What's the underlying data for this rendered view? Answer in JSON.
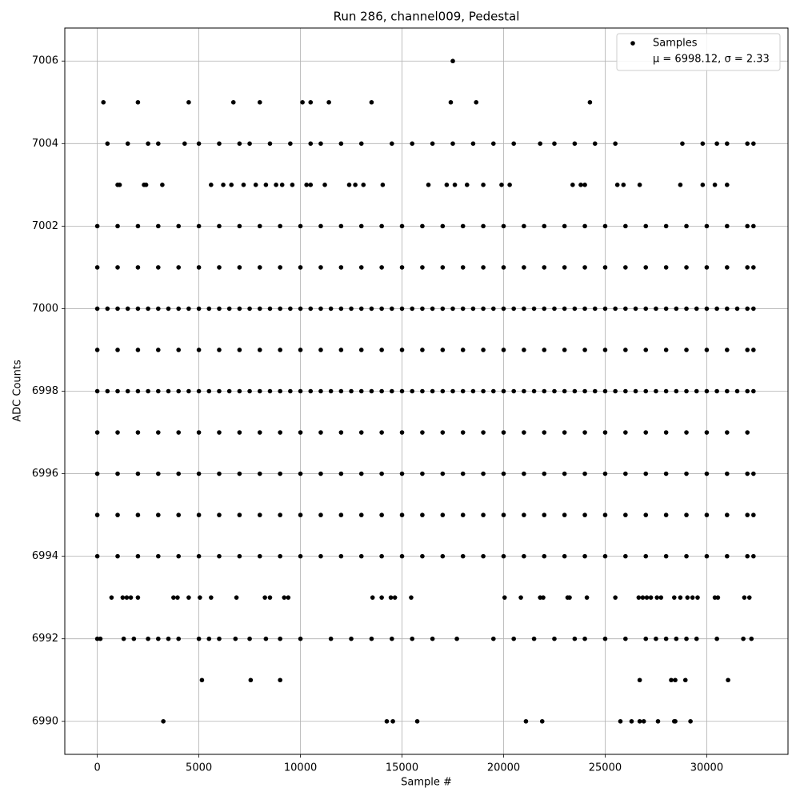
{
  "chart_data": {
    "type": "scatter",
    "title": "Run 286, channel009, Pedestal",
    "x_label": "Sample #",
    "y_label": "ADC Counts",
    "xlim": [
      -1600,
      34000
    ],
    "ylim": [
      6989.2,
      7006.8
    ],
    "xticks": [
      0,
      5000,
      10000,
      15000,
      20000,
      25000,
      30000
    ],
    "yticks": [
      6990,
      6992,
      6994,
      6996,
      6998,
      7000,
      7002,
      7004,
      7006
    ],
    "grid": true,
    "legend": "upper right",
    "legend_note": "μ = 6998.12, σ = 2.33",
    "series": [
      {
        "name": "Samples",
        "color": "#000000",
        "x": [
          17500,
          300,
          2000,
          4500,
          6700,
          8000,
          10100,
          10500,
          11400,
          13500,
          17400,
          18650,
          24250,
          500,
          1500,
          2500,
          3000,
          4300,
          5000,
          6000,
          7000,
          7500,
          8500,
          9500,
          10500,
          11000,
          12000,
          13000,
          14500,
          15500,
          16500,
          17500,
          18500,
          19500,
          20500,
          21800,
          22500,
          23500,
          24500,
          25500,
          28800,
          29800,
          30500,
          31000,
          32000,
          32300,
          1000,
          1100,
          2300,
          2400,
          3200,
          5600,
          6200,
          6600,
          7200,
          7800,
          8300,
          8800,
          9100,
          9600,
          10300,
          10500,
          11200,
          12400,
          12700,
          13100,
          14050,
          16300,
          17200,
          17600,
          18200,
          19000,
          19900,
          20300,
          23400,
          23800,
          24000,
          25600,
          25900,
          26700,
          28700,
          29800,
          30400,
          31000,
          0,
          1000,
          2000,
          3000,
          4000,
          5000,
          6000,
          7000,
          8000,
          9000,
          10000,
          11000,
          12000,
          13000,
          14000,
          15000,
          16000,
          17000,
          18000,
          19000,
          20000,
          21000,
          22000,
          23000,
          24000,
          25000,
          26000,
          27000,
          28000,
          29000,
          30000,
          31000,
          32000,
          32300,
          0,
          1000,
          2000,
          3000,
          4000,
          5000,
          6000,
          7000,
          8000,
          9000,
          10000,
          11000,
          12000,
          13000,
          14000,
          15000,
          16000,
          17000,
          18000,
          19000,
          20000,
          21000,
          22000,
          23000,
          24000,
          25000,
          26000,
          27000,
          28000,
          29000,
          30000,
          31000,
          32000,
          32300,
          0,
          500,
          1000,
          1500,
          2000,
          2500,
          3000,
          3500,
          4000,
          4500,
          5000,
          5500,
          6000,
          6500,
          7000,
          7500,
          8000,
          8500,
          9000,
          9500,
          10000,
          10500,
          11000,
          11500,
          12000,
          12500,
          13000,
          13500,
          14000,
          14500,
          15000,
          15500,
          16000,
          16500,
          17000,
          17500,
          18000,
          18500,
          19000,
          19500,
          20000,
          20500,
          21000,
          21500,
          22000,
          22500,
          23000,
          23500,
          24000,
          24500,
          25000,
          25500,
          26000,
          26500,
          27000,
          27500,
          28000,
          28500,
          29000,
          29500,
          30000,
          30500,
          31000,
          31500,
          32000,
          32300,
          0,
          1000,
          2000,
          3000,
          4000,
          5000,
          6000,
          7000,
          8000,
          9000,
          10000,
          11000,
          12000,
          13000,
          14000,
          15000,
          16000,
          17000,
          18000,
          19000,
          20000,
          21000,
          22000,
          23000,
          24000,
          25000,
          26000,
          27000,
          28000,
          29000,
          30000,
          31000,
          32000,
          32300,
          0,
          500,
          1000,
          1500,
          2000,
          2500,
          3000,
          3500,
          4000,
          4500,
          5000,
          5500,
          6000,
          6500,
          7000,
          7500,
          8000,
          8500,
          9000,
          9500,
          10000,
          10500,
          11000,
          11500,
          12000,
          12500,
          13000,
          13500,
          14000,
          14500,
          15000,
          15500,
          16000,
          16500,
          17000,
          17500,
          18000,
          18500,
          19000,
          19500,
          20000,
          20500,
          21000,
          21500,
          22000,
          22500,
          23000,
          23500,
          24000,
          24500,
          25000,
          25500,
          26000,
          26500,
          27000,
          27500,
          28000,
          28500,
          29000,
          29500,
          30000,
          30500,
          31000,
          31500,
          32000,
          32300,
          0,
          1000,
          2000,
          3000,
          4000,
          5000,
          6000,
          7000,
          8000,
          9000,
          10000,
          11000,
          12000,
          13000,
          14000,
          15000,
          16000,
          17000,
          18000,
          19000,
          20000,
          21000,
          22000,
          23000,
          24000,
          25000,
          26000,
          27000,
          28000,
          29000,
          30000,
          31000,
          32000,
          0,
          1000,
          2000,
          3000,
          4000,
          5000,
          6000,
          7000,
          8000,
          9000,
          10000,
          11000,
          12000,
          13000,
          14000,
          15000,
          16000,
          17000,
          18000,
          19000,
          20000,
          21000,
          22000,
          23000,
          24000,
          25000,
          26000,
          27000,
          28000,
          29000,
          30000,
          31000,
          32000,
          32300,
          0,
          1000,
          2000,
          3000,
          4000,
          5000,
          6000,
          7000,
          8000,
          9000,
          10000,
          11000,
          12000,
          13000,
          14000,
          15000,
          16000,
          17000,
          18000,
          19000,
          20000,
          21000,
          22000,
          23000,
          24000,
          25000,
          26000,
          27000,
          28000,
          29000,
          30000,
          31000,
          32000,
          32300,
          0,
          1000,
          2000,
          3000,
          4000,
          5000,
          6000,
          7000,
          8000,
          9000,
          10000,
          11000,
          12000,
          13000,
          14000,
          15000,
          16000,
          17000,
          18000,
          19000,
          20000,
          21000,
          22000,
          23000,
          24000,
          25000,
          26000,
          27000,
          28000,
          29000,
          30000,
          31000,
          32000,
          32300,
          700,
          1250,
          1450,
          1650,
          2000,
          3750,
          3950,
          4500,
          5050,
          5600,
          6850,
          8250,
          8500,
          9200,
          9400,
          13550,
          14000,
          14450,
          14650,
          15450,
          20050,
          20850,
          21800,
          21950,
          23150,
          23250,
          24100,
          25500,
          26650,
          26850,
          27050,
          27250,
          27550,
          27750,
          28400,
          28700,
          29050,
          29300,
          29550,
          30400,
          30550,
          31850,
          32100,
          0,
          150,
          1300,
          1800,
          2500,
          3000,
          3500,
          4000,
          5000,
          5500,
          6000,
          6800,
          7500,
          8300,
          9000,
          10000,
          11500,
          12500,
          13500,
          14500,
          15500,
          16500,
          17700,
          19500,
          20500,
          21500,
          22500,
          23500,
          24000,
          25000,
          26000,
          27000,
          27500,
          28000,
          28500,
          29000,
          29500,
          30500,
          31800,
          32200,
          5150,
          7550,
          9000,
          26700,
          28250,
          28450,
          28950,
          31050,
          3250,
          14250,
          14550,
          15750,
          21100,
          21900,
          25750,
          26300,
          26700,
          26900,
          27600,
          28400,
          28450,
          29200
        ],
        "y": [
          7006,
          7005,
          7005,
          7005,
          7005,
          7005,
          7005,
          7005,
          7005,
          7005,
          7005,
          7005,
          7005,
          7004,
          7004,
          7004,
          7004,
          7004,
          7004,
          7004,
          7004,
          7004,
          7004,
          7004,
          7004,
          7004,
          7004,
          7004,
          7004,
          7004,
          7004,
          7004,
          7004,
          7004,
          7004,
          7004,
          7004,
          7004,
          7004,
          7004,
          7004,
          7004,
          7004,
          7004,
          7004,
          7004,
          7003,
          7003,
          7003,
          7003,
          7003,
          7003,
          7003,
          7003,
          7003,
          7003,
          7003,
          7003,
          7003,
          7003,
          7003,
          7003,
          7003,
          7003,
          7003,
          7003,
          7003,
          7003,
          7003,
          7003,
          7003,
          7003,
          7003,
          7003,
          7003,
          7003,
          7003,
          7003,
          7003,
          7003,
          7003,
          7003,
          7003,
          7003,
          7002,
          7002,
          7002,
          7002,
          7002,
          7002,
          7002,
          7002,
          7002,
          7002,
          7002,
          7002,
          7002,
          7002,
          7002,
          7002,
          7002,
          7002,
          7002,
          7002,
          7002,
          7002,
          7002,
          7002,
          7002,
          7002,
          7002,
          7002,
          7002,
          7002,
          7002,
          7002,
          7002,
          7002,
          7001,
          7001,
          7001,
          7001,
          7001,
          7001,
          7001,
          7001,
          7001,
          7001,
          7001,
          7001,
          7001,
          7001,
          7001,
          7001,
          7001,
          7001,
          7001,
          7001,
          7001,
          7001,
          7001,
          7001,
          7001,
          7001,
          7001,
          7001,
          7001,
          7001,
          7001,
          7001,
          7001,
          7001,
          7000,
          7000,
          7000,
          7000,
          7000,
          7000,
          7000,
          7000,
          7000,
          7000,
          7000,
          7000,
          7000,
          7000,
          7000,
          7000,
          7000,
          7000,
          7000,
          7000,
          7000,
          7000,
          7000,
          7000,
          7000,
          7000,
          7000,
          7000,
          7000,
          7000,
          7000,
          7000,
          7000,
          7000,
          7000,
          7000,
          7000,
          7000,
          7000,
          7000,
          7000,
          7000,
          7000,
          7000,
          7000,
          7000,
          7000,
          7000,
          7000,
          7000,
          7000,
          7000,
          7000,
          7000,
          7000,
          7000,
          7000,
          7000,
          7000,
          7000,
          7000,
          7000,
          7000,
          7000,
          7000,
          7000,
          6999,
          6999,
          6999,
          6999,
          6999,
          6999,
          6999,
          6999,
          6999,
          6999,
          6999,
          6999,
          6999,
          6999,
          6999,
          6999,
          6999,
          6999,
          6999,
          6999,
          6999,
          6999,
          6999,
          6999,
          6999,
          6999,
          6999,
          6999,
          6999,
          6999,
          6999,
          6999,
          6999,
          6999,
          6998,
          6998,
          6998,
          6998,
          6998,
          6998,
          6998,
          6998,
          6998,
          6998,
          6998,
          6998,
          6998,
          6998,
          6998,
          6998,
          6998,
          6998,
          6998,
          6998,
          6998,
          6998,
          6998,
          6998,
          6998,
          6998,
          6998,
          6998,
          6998,
          6998,
          6998,
          6998,
          6998,
          6998,
          6998,
          6998,
          6998,
          6998,
          6998,
          6998,
          6998,
          6998,
          6998,
          6998,
          6998,
          6998,
          6998,
          6998,
          6998,
          6998,
          6998,
          6998,
          6998,
          6998,
          6998,
          6998,
          6998,
          6998,
          6998,
          6998,
          6998,
          6998,
          6998,
          6998,
          6998,
          6998,
          6997,
          6997,
          6997,
          6997,
          6997,
          6997,
          6997,
          6997,
          6997,
          6997,
          6997,
          6997,
          6997,
          6997,
          6997,
          6997,
          6997,
          6997,
          6997,
          6997,
          6997,
          6997,
          6997,
          6997,
          6997,
          6997,
          6997,
          6997,
          6997,
          6997,
          6997,
          6997,
          6997,
          6996,
          6996,
          6996,
          6996,
          6996,
          6996,
          6996,
          6996,
          6996,
          6996,
          6996,
          6996,
          6996,
          6996,
          6996,
          6996,
          6996,
          6996,
          6996,
          6996,
          6996,
          6996,
          6996,
          6996,
          6996,
          6996,
          6996,
          6996,
          6996,
          6996,
          6996,
          6996,
          6996,
          6996,
          6995,
          6995,
          6995,
          6995,
          6995,
          6995,
          6995,
          6995,
          6995,
          6995,
          6995,
          6995,
          6995,
          6995,
          6995,
          6995,
          6995,
          6995,
          6995,
          6995,
          6995,
          6995,
          6995,
          6995,
          6995,
          6995,
          6995,
          6995,
          6995,
          6995,
          6995,
          6995,
          6995,
          6995,
          6994,
          6994,
          6994,
          6994,
          6994,
          6994,
          6994,
          6994,
          6994,
          6994,
          6994,
          6994,
          6994,
          6994,
          6994,
          6994,
          6994,
          6994,
          6994,
          6994,
          6994,
          6994,
          6994,
          6994,
          6994,
          6994,
          6994,
          6994,
          6994,
          6994,
          6994,
          6994,
          6994,
          6994,
          6993,
          6993,
          6993,
          6993,
          6993,
          6993,
          6993,
          6993,
          6993,
          6993,
          6993,
          6993,
          6993,
          6993,
          6993,
          6993,
          6993,
          6993,
          6993,
          6993,
          6993,
          6993,
          6993,
          6993,
          6993,
          6993,
          6993,
          6993,
          6993,
          6993,
          6993,
          6993,
          6993,
          6993,
          6993,
          6993,
          6993,
          6993,
          6993,
          6993,
          6993,
          6993,
          6993,
          6992,
          6992,
          6992,
          6992,
          6992,
          6992,
          6992,
          6992,
          6992,
          6992,
          6992,
          6992,
          6992,
          6992,
          6992,
          6992,
          6992,
          6992,
          6992,
          6992,
          6992,
          6992,
          6992,
          6992,
          6992,
          6992,
          6992,
          6992,
          6992,
          6992,
          6992,
          6992,
          6992,
          6992,
          6992,
          6992,
          6992,
          6992,
          6992,
          6992,
          6991,
          6991,
          6991,
          6991,
          6991,
          6991,
          6991,
          6991,
          6990,
          6990,
          6990,
          6990,
          6990,
          6990,
          6990,
          6990,
          6990,
          6990,
          6990,
          6990,
          6990,
          6990
        ]
      }
    ]
  }
}
